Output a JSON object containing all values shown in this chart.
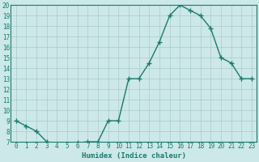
{
  "x": [
    0,
    1,
    2,
    3,
    4,
    5,
    6,
    7,
    8,
    9,
    10,
    11,
    12,
    13,
    14,
    15,
    16,
    17,
    18,
    19,
    20,
    21,
    22,
    23
  ],
  "y": [
    9,
    8.5,
    8,
    7,
    6.8,
    6.8,
    6.9,
    7,
    7,
    9,
    9,
    13,
    13,
    14.5,
    16.5,
    19,
    20,
    19.5,
    19,
    17.8,
    15,
    14.5,
    13,
    13
  ],
  "xlabel": "Humidex (Indice chaleur)",
  "ylim_min": 7,
  "ylim_max": 20,
  "xlim_min": -0.5,
  "xlim_max": 23.5,
  "yticks": [
    7,
    8,
    9,
    10,
    11,
    12,
    13,
    14,
    15,
    16,
    17,
    18,
    19,
    20
  ],
  "xticks": [
    0,
    1,
    2,
    3,
    4,
    5,
    6,
    7,
    8,
    9,
    10,
    11,
    12,
    13,
    14,
    15,
    16,
    17,
    18,
    19,
    20,
    21,
    22,
    23
  ],
  "line_color": "#1a7a6e",
  "bg_color": "#cce8e8",
  "grid_color": "#aacaca",
  "marker": "+",
  "linewidth": 1.0,
  "markersize": 4,
  "markeredgewidth": 1.0,
  "xlabel_fontsize": 6.5,
  "tick_fontsize": 5.5,
  "spine_color": "#1a7a6e"
}
